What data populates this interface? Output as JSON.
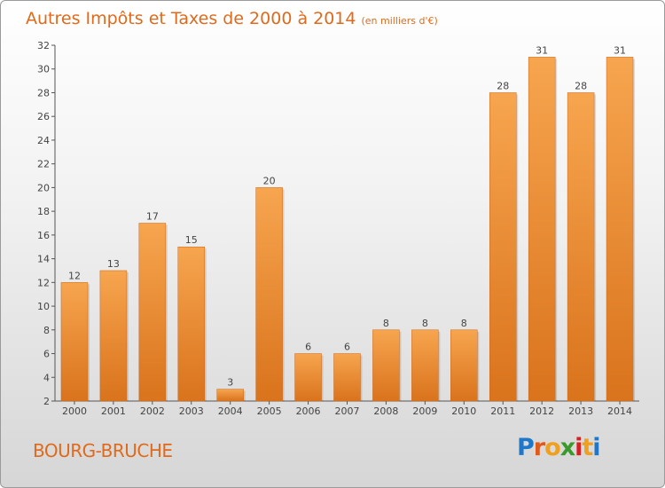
{
  "header": {
    "title": "Autres Impôts et Taxes de 2000 à 2014",
    "unit": "(en milliers d'€)"
  },
  "location": "BOURG-BRUCHE",
  "logo": {
    "letters": [
      "P",
      "r",
      "o",
      "x",
      "i",
      "t",
      "i"
    ],
    "colors": [
      "#1f77c9",
      "#e05a1a",
      "#f0a020",
      "#3a9a2a",
      "#d82020",
      "#f0a020",
      "#1f77c9"
    ]
  },
  "chart_data": {
    "type": "bar",
    "title": "Autres Impôts et Taxes de 2000 à 2014",
    "subtitle": "(en milliers d'€)",
    "categories": [
      "2000",
      "2001",
      "2002",
      "2003",
      "2004",
      "2005",
      "2006",
      "2007",
      "2008",
      "2009",
      "2010",
      "2011",
      "2012",
      "2013",
      "2014"
    ],
    "values": [
      12,
      13,
      17,
      15,
      3,
      20,
      6,
      6,
      8,
      8,
      8,
      28,
      31,
      28,
      31
    ],
    "ylim": [
      2,
      32
    ],
    "yticks": [
      2,
      4,
      6,
      8,
      10,
      12,
      14,
      16,
      18,
      20,
      22,
      24,
      26,
      28,
      30,
      32
    ],
    "grid": false,
    "legend": "none",
    "bar_color_light": "#f7a54f",
    "bar_color_dark": "#d9731c"
  }
}
